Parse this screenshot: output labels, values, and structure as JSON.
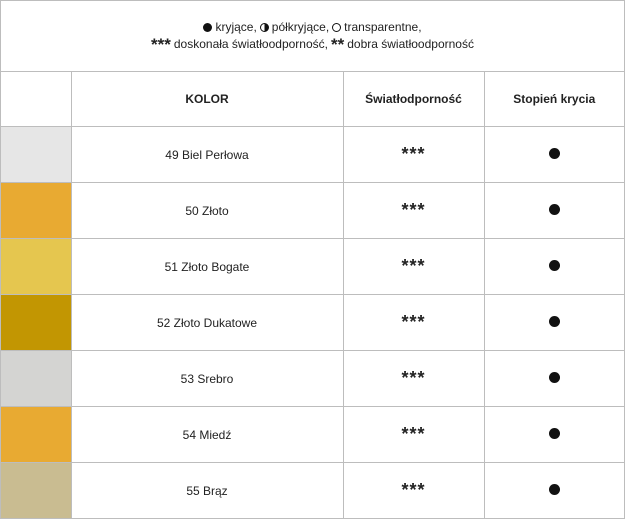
{
  "legend": {
    "line1": {
      "covering": "kryjące,",
      "semi_covering": "półkryjące,",
      "transparent": "transparentne,"
    },
    "line2": {
      "stars_excellent": "***",
      "excellent": "doskonała światłoodporność,",
      "stars_good": "**",
      "good": "dobra światłoodporność"
    }
  },
  "table": {
    "headers": {
      "swatch": "",
      "color": "KOLOR",
      "lightfastness": "Światłodporność",
      "opacity": "Stopień krycia"
    },
    "rows": [
      {
        "name": "49 Biel Perłowa",
        "swatch": "#e6e6e6",
        "lightfastness": "***",
        "opacity": "covering"
      },
      {
        "name": "50 Złoto",
        "swatch": "#e8aa32",
        "lightfastness": "***",
        "opacity": "covering"
      },
      {
        "name": "51 Złoto Bogate",
        "swatch": "#e5c64f",
        "lightfastness": "***",
        "opacity": "covering"
      },
      {
        "name": "52 Złoto Dukatowe",
        "swatch": "#c29602",
        "lightfastness": "***",
        "opacity": "covering"
      },
      {
        "name": "53 Srebro",
        "swatch": "#d4d4d2",
        "lightfastness": "***",
        "opacity": "covering"
      },
      {
        "name": "54 Miedź",
        "swatch": "#e8aa32",
        "lightfastness": "***",
        "opacity": "covering"
      },
      {
        "name": "55 Brąz",
        "swatch": "#c9bc91",
        "lightfastness": "***",
        "opacity": "covering"
      }
    ]
  }
}
